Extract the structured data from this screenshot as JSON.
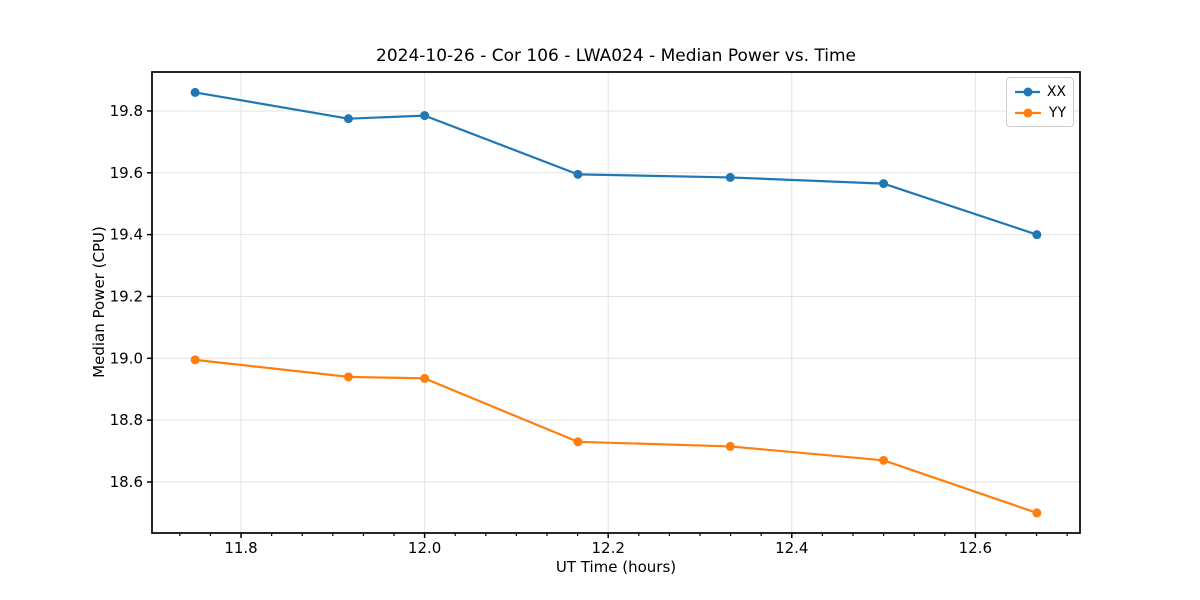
{
  "chart_data": {
    "type": "line",
    "title": "2024-10-26 - Cor 106 - LWA024 - Median Power vs. Time",
    "xlabel": "UT Time (hours)",
    "ylabel": "Median Power (CPU)",
    "xlim": [
      11.703,
      12.714
    ],
    "ylim": [
      18.435,
      19.926
    ],
    "grid": true,
    "grid_color": "#e3e3e3",
    "spine_color": "#000000",
    "legend_position": "upper right",
    "x_ticks": {
      "values": [
        11.8,
        12.0,
        12.2,
        12.4,
        12.6
      ],
      "labels": [
        "11.8",
        "12.0",
        "12.2",
        "12.4",
        "12.6"
      ]
    },
    "x_minor_tick_step": 0.0333333,
    "x_minor_tick_anchor": 11.8,
    "y_ticks": {
      "values": [
        18.6,
        18.8,
        19.0,
        19.2,
        19.4,
        19.6,
        19.8
      ],
      "labels": [
        "18.6",
        "18.8",
        "19.0",
        "19.2",
        "19.4",
        "19.6",
        "19.8"
      ]
    },
    "series": [
      {
        "name": "XX",
        "color": "#1f77b4",
        "x": [
          11.75,
          11.917,
          12.0,
          12.167,
          12.333,
          12.5,
          12.667
        ],
        "y": [
          19.86,
          19.775,
          19.785,
          19.595,
          19.585,
          19.565,
          19.4
        ]
      },
      {
        "name": "YY",
        "color": "#ff7f0e",
        "x": [
          11.75,
          11.917,
          12.0,
          12.167,
          12.333,
          12.5,
          12.667
        ],
        "y": [
          18.995,
          18.94,
          18.935,
          18.73,
          18.715,
          18.67,
          18.5
        ]
      }
    ]
  }
}
